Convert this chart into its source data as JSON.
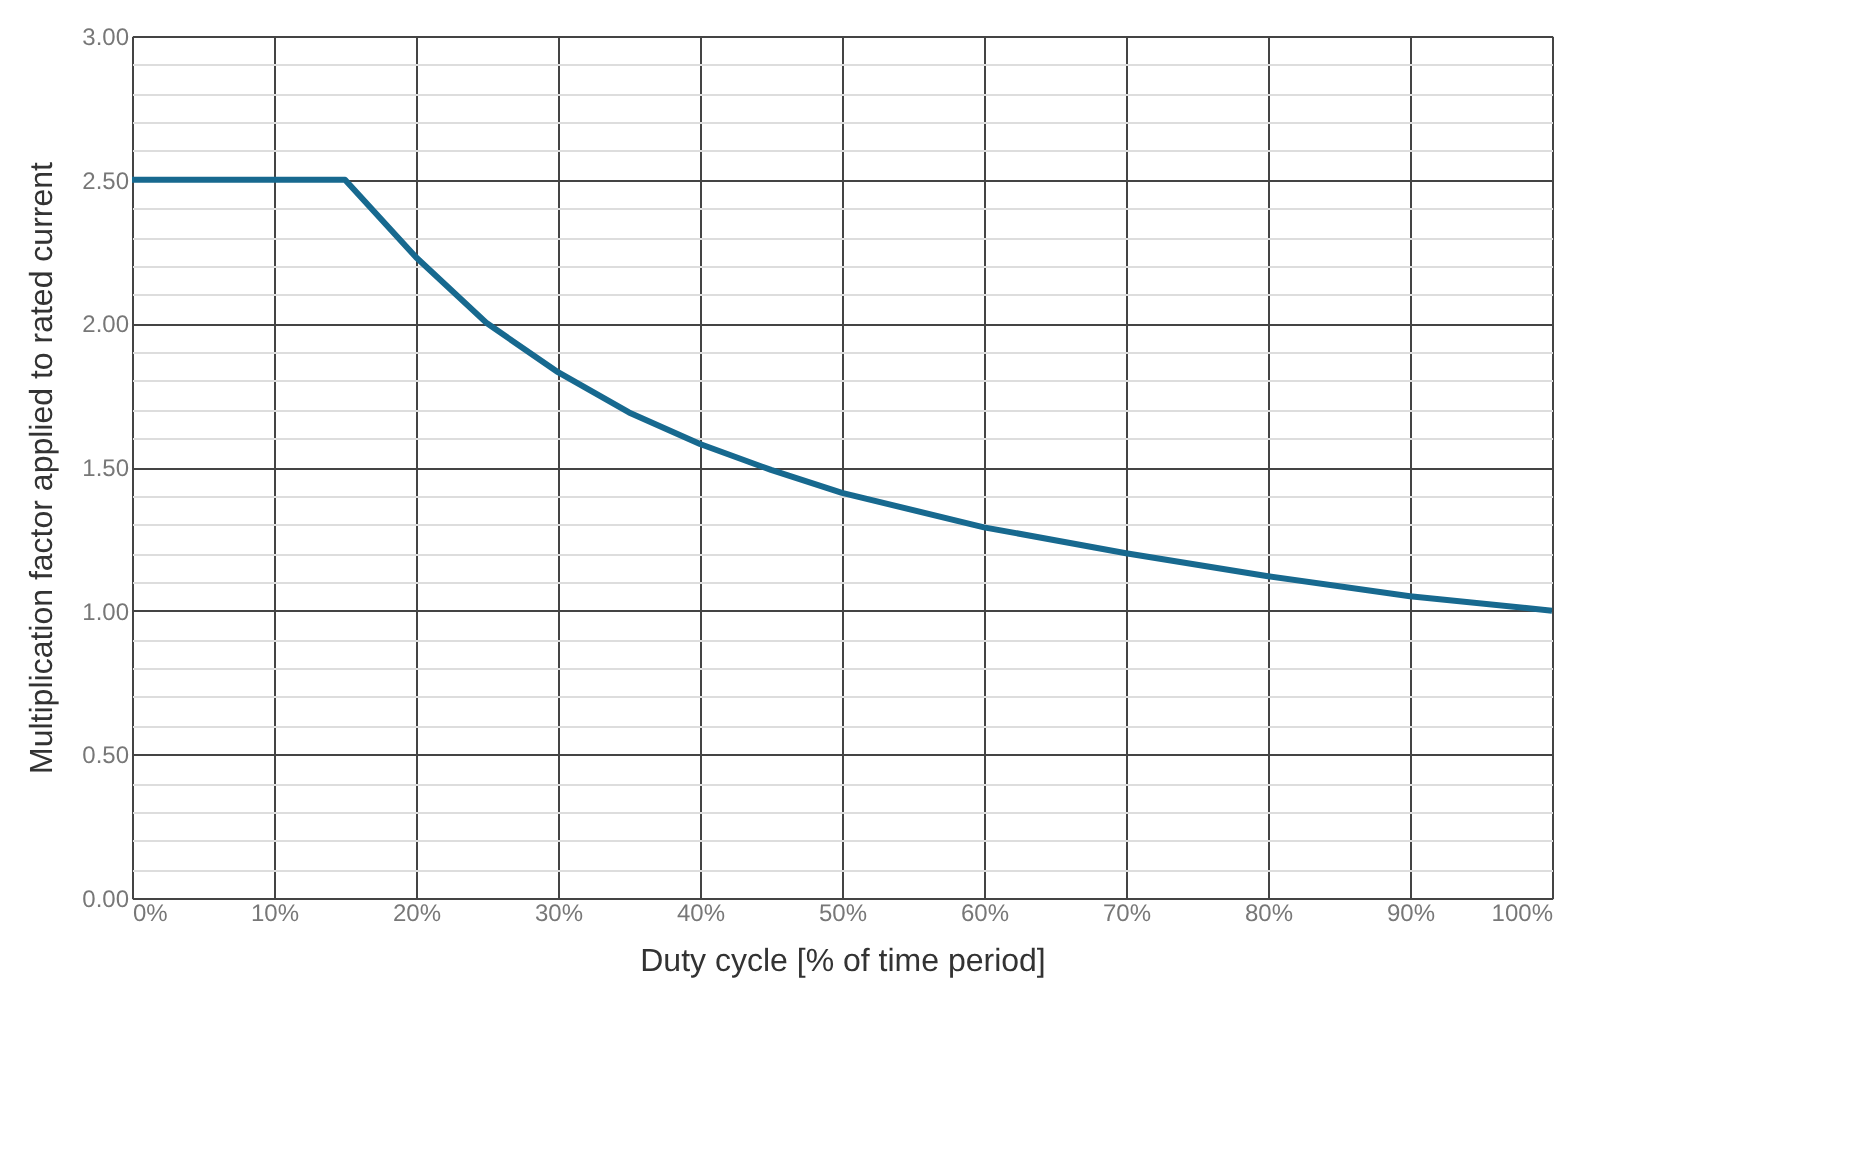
{
  "chart_data": {
    "type": "line",
    "xlabel": "Duty cycle [% of time period]",
    "ylabel": "Multiplication factor applied to rated current",
    "x": [
      0,
      10,
      15,
      20,
      25,
      30,
      35,
      40,
      45,
      50,
      60,
      70,
      80,
      90,
      100
    ],
    "series": [
      {
        "color": "#17698f",
        "values": [
          2.5,
          2.5,
          2.5,
          2.23,
          2.0,
          1.83,
          1.69,
          1.58,
          1.49,
          1.41,
          1.29,
          1.2,
          1.12,
          1.05,
          1.0
        ]
      }
    ],
    "xlim": [
      0,
      100
    ],
    "xticks": [
      {
        "value": 0,
        "label": "0%"
      },
      {
        "value": 10,
        "label": "10%"
      },
      {
        "value": 20,
        "label": "20%"
      },
      {
        "value": 30,
        "label": "30%"
      },
      {
        "value": 40,
        "label": "40%"
      },
      {
        "value": 50,
        "label": "50%"
      },
      {
        "value": 60,
        "label": "60%"
      },
      {
        "value": 70,
        "label": "70%"
      },
      {
        "value": 80,
        "label": "80%"
      },
      {
        "value": 90,
        "label": "90%"
      },
      {
        "value": 100,
        "label": "100%"
      }
    ],
    "ylim": [
      0,
      3
    ],
    "yticks": [
      {
        "value": 0,
        "label": "0.00"
      },
      {
        "value": 0.1,
        "label": null
      },
      {
        "value": 0.2,
        "label": null
      },
      {
        "value": 0.3,
        "label": null
      },
      {
        "value": 0.4,
        "label": null
      },
      {
        "value": 0.5,
        "label": "0.50"
      },
      {
        "value": 0.6,
        "label": null
      },
      {
        "value": 0.7,
        "label": null
      },
      {
        "value": 0.8,
        "label": null
      },
      {
        "value": 0.9,
        "label": null
      },
      {
        "value": 1,
        "label": "1.00"
      },
      {
        "value": 1.1,
        "label": null
      },
      {
        "value": 1.2,
        "label": null
      },
      {
        "value": 1.3,
        "label": null
      },
      {
        "value": 1.4,
        "label": null
      },
      {
        "value": 1.5,
        "label": "1.50"
      },
      {
        "value": 1.6,
        "label": null
      },
      {
        "value": 1.7,
        "label": null
      },
      {
        "value": 1.8,
        "label": null
      },
      {
        "value": 1.9,
        "label": null
      },
      {
        "value": 2,
        "label": "2.00"
      },
      {
        "value": 2.1,
        "label": null
      },
      {
        "value": 2.2,
        "label": null
      },
      {
        "value": 2.3,
        "label": null
      },
      {
        "value": 2.4,
        "label": null
      },
      {
        "value": 2.5,
        "label": "2.50"
      },
      {
        "value": 2.6,
        "label": null
      },
      {
        "value": 2.7,
        "label": null
      },
      {
        "value": 2.8,
        "label": null
      },
      {
        "value": 2.9,
        "label": null
      },
      {
        "value": 3,
        "label": "3.00"
      }
    ],
    "grid": true,
    "legend": false,
    "marker": "none",
    "line_style": "solid"
  }
}
